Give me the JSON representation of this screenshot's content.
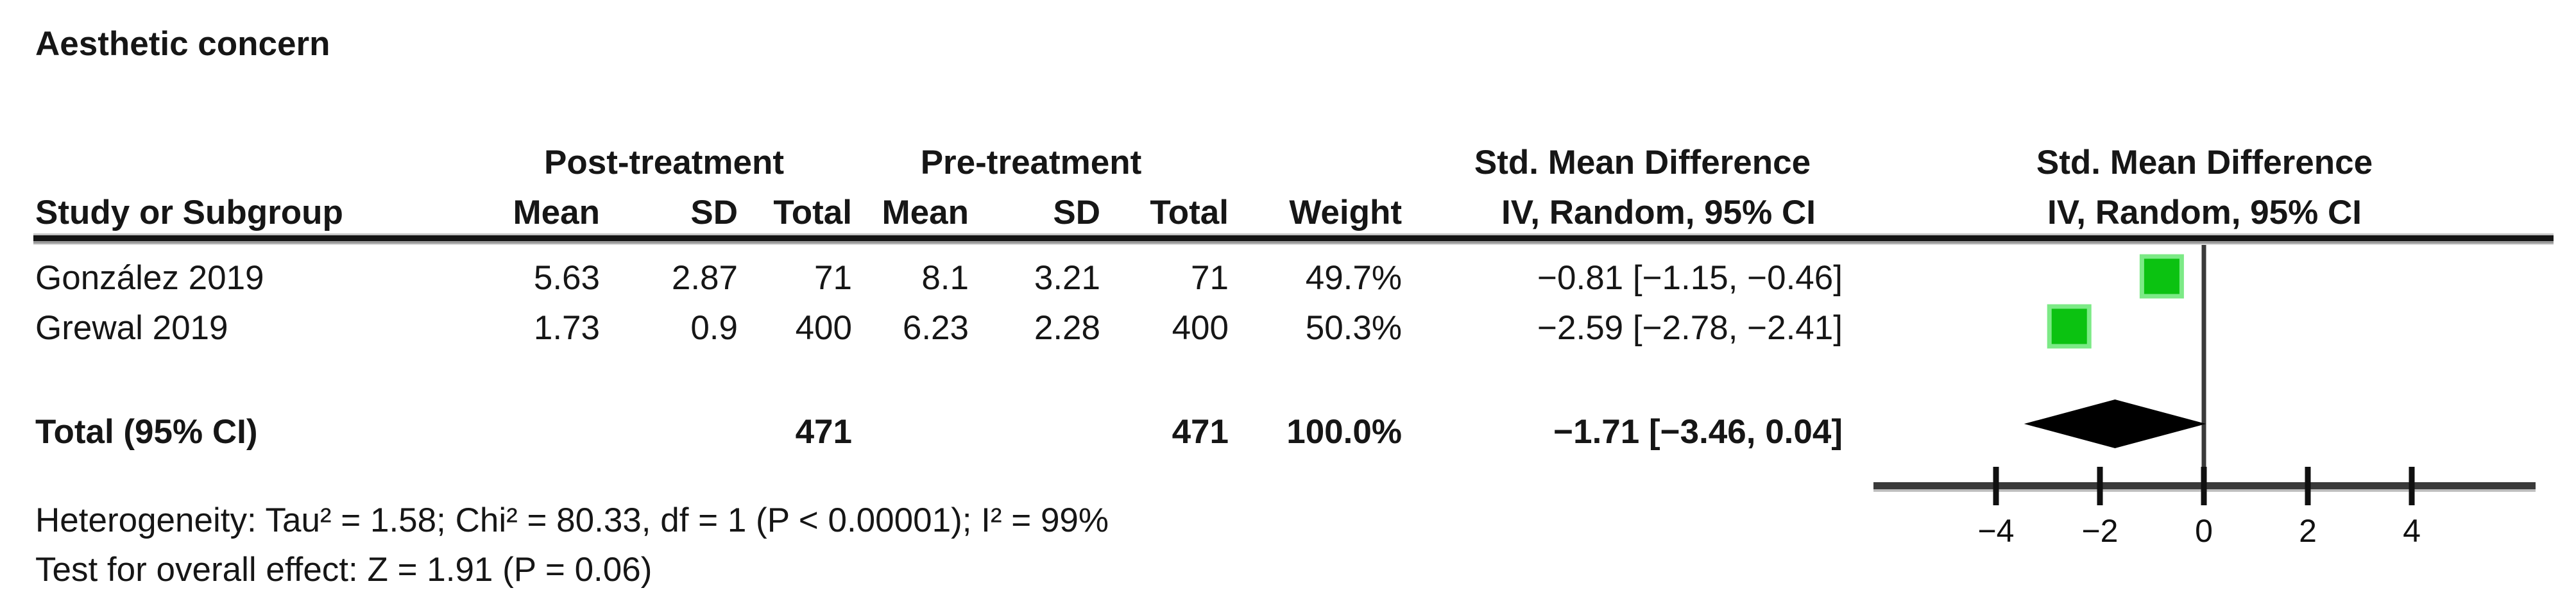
{
  "title": "Aesthetic concern",
  "table": {
    "group_headers": {
      "post": "Post-treatment",
      "pre": "Pre-treatment",
      "smd_left": "Std. Mean Difference",
      "smd_right": "Std. Mean Difference"
    },
    "col_headers": {
      "study": "Study or Subgroup",
      "mean_post": "Mean",
      "sd_post": "SD",
      "total_post": "Total",
      "mean_pre": "Mean",
      "sd_pre": "SD",
      "total_pre": "Total",
      "weight": "Weight",
      "iv_left": "IV, Random, 95% CI",
      "iv_right": "IV, Random, 95% CI"
    },
    "rows": [
      {
        "study": "González 2019",
        "post_mean": "5.63",
        "post_sd": "2.87",
        "post_total": "71",
        "pre_mean": "8.1",
        "pre_sd": "3.21",
        "pre_total": "71",
        "weight": "49.7%",
        "smd_ci": "−0.81 [−1.15, −0.46]"
      },
      {
        "study": "Grewal 2019",
        "post_mean": "1.73",
        "post_sd": "0.9",
        "post_total": "400",
        "pre_mean": "6.23",
        "pre_sd": "2.28",
        "pre_total": "400",
        "weight": "50.3%",
        "smd_ci": "−2.59 [−2.78, −2.41]"
      }
    ],
    "total_row": {
      "label": "Total (95% CI)",
      "post_total": "471",
      "pre_total": "471",
      "weight": "100.0%",
      "smd_ci": "−1.71 [−3.46, 0.04]"
    },
    "footnotes": {
      "heterogeneity": "Heterogeneity: Tau² = 1.58; Chi² = 80.33, df = 1 (P < 0.00001); I² = 99%",
      "overall_effect": "Test for overall effect: Z = 1.91 (P = 0.06)"
    }
  },
  "chart_data": {
    "type": "scatter",
    "subtype": "forest-plot",
    "title": "Aesthetic concern",
    "effect_measure": "Std. Mean Difference",
    "model": "IV, Random, 95% CI",
    "axis": {
      "xlim": [
        -4,
        4
      ],
      "ticks": [
        -4,
        -2,
        0,
        2,
        4
      ],
      "zero_line": 0,
      "grid": false
    },
    "studies": [
      {
        "name": "González 2019",
        "estimate": -0.81,
        "ci_low": -1.15,
        "ci_high": -0.46,
        "weight_pct": 49.7
      },
      {
        "name": "Grewal 2019",
        "estimate": -2.59,
        "ci_low": -2.78,
        "ci_high": -2.41,
        "weight_pct": 50.3
      }
    ],
    "total": {
      "name": "Total (95% CI)",
      "estimate": -1.71,
      "ci_low": -3.46,
      "ci_high": 0.04,
      "weight_pct": 100.0
    },
    "marker_color": "#0bc211",
    "marker_edge_color": "#7cea86",
    "diamond_color": "#000000",
    "line_color": "#3a3a3a"
  }
}
